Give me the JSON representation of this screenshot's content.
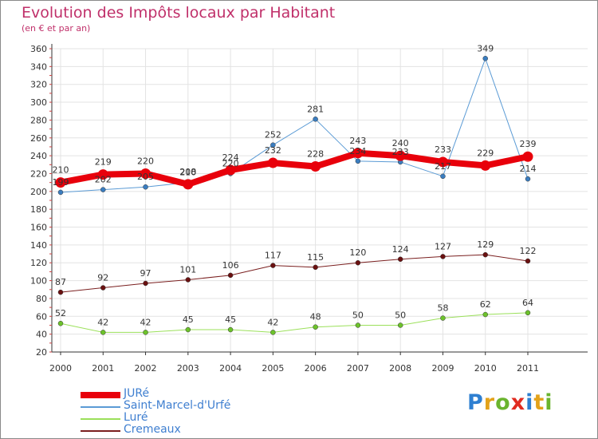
{
  "header": {
    "title": "Evolution des Impôts locaux par Habitant",
    "subtitle": "(en € et par an)"
  },
  "logo": {
    "letters": [
      "P",
      "r",
      "o",
      "x",
      "i",
      "t",
      "i"
    ],
    "colors": [
      "#2e7fd1",
      "#e3a21a",
      "#6ab42e",
      "#e02b20",
      "#2e7fd1",
      "#e3a21a",
      "#6ab42e"
    ]
  },
  "chart_data": {
    "type": "line",
    "title": "Evolution des Impôts locaux par Habitant",
    "subtitle": "(en € et par an)",
    "categories": [
      "2000",
      "2001",
      "2002",
      "2003",
      "2004",
      "2005",
      "2006",
      "2007",
      "2008",
      "2009",
      "2010",
      "2011"
    ],
    "ylim": [
      20,
      360
    ],
    "yticks": [
      20,
      40,
      60,
      80,
      100,
      120,
      140,
      160,
      180,
      200,
      220,
      240,
      260,
      280,
      300,
      320,
      340,
      360
    ],
    "grid": true,
    "legend_position": "bottom-left",
    "series": [
      {
        "name": "Saint-Marcel-d'Urfé",
        "color": "#5b9bd5",
        "marker": "#3a7dc0",
        "width": 1,
        "values": [
          199,
          202,
          205,
          210,
          220,
          252,
          281,
          234,
          233,
          217,
          349,
          214
        ],
        "labels": [
          "199",
          "202",
          "205",
          "210",
          "220",
          "252",
          "281",
          "234",
          "233",
          "217",
          "349",
          "214"
        ]
      },
      {
        "name": "JURé",
        "color": "#e8000b",
        "marker": "#e8000b",
        "width": 8,
        "values": [
          210,
          219,
          220,
          208,
          224,
          232,
          228,
          243,
          240,
          233,
          229,
          239
        ],
        "labels": [
          "210",
          "219",
          "220",
          "208",
          "224",
          "232",
          "228",
          "243",
          "240",
          "233",
          "229",
          "239"
        ]
      },
      {
        "name": "Luré",
        "color": "#9be05a",
        "marker": "#6cc22a",
        "width": 1,
        "values": [
          52,
          42,
          42,
          45,
          45,
          42,
          48,
          50,
          50,
          58,
          62,
          64
        ],
        "labels": [
          "52",
          "42",
          "42",
          "45",
          "45",
          "42",
          "48",
          "50",
          "50",
          "58",
          "62",
          "64"
        ]
      },
      {
        "name": "Cremeaux",
        "color": "#7a1f1f",
        "marker": "#6a1010",
        "width": 1,
        "values": [
          87,
          92,
          97,
          101,
          106,
          117,
          115,
          120,
          124,
          127,
          129,
          122
        ],
        "labels": [
          "87",
          "92",
          "97",
          "101",
          "106",
          "117",
          "115",
          "120",
          "124",
          "127",
          "129",
          "122"
        ]
      }
    ]
  },
  "legend": [
    {
      "label": "JURé",
      "color": "#e8000b",
      "width": 8
    },
    {
      "label": "Saint-Marcel-d'Urfé",
      "color": "#5b9bd5",
      "width": 2
    },
    {
      "label": "Luré",
      "color": "#9be05a",
      "width": 2
    },
    {
      "label": "Cremeaux",
      "color": "#7a1f1f",
      "width": 2
    }
  ]
}
